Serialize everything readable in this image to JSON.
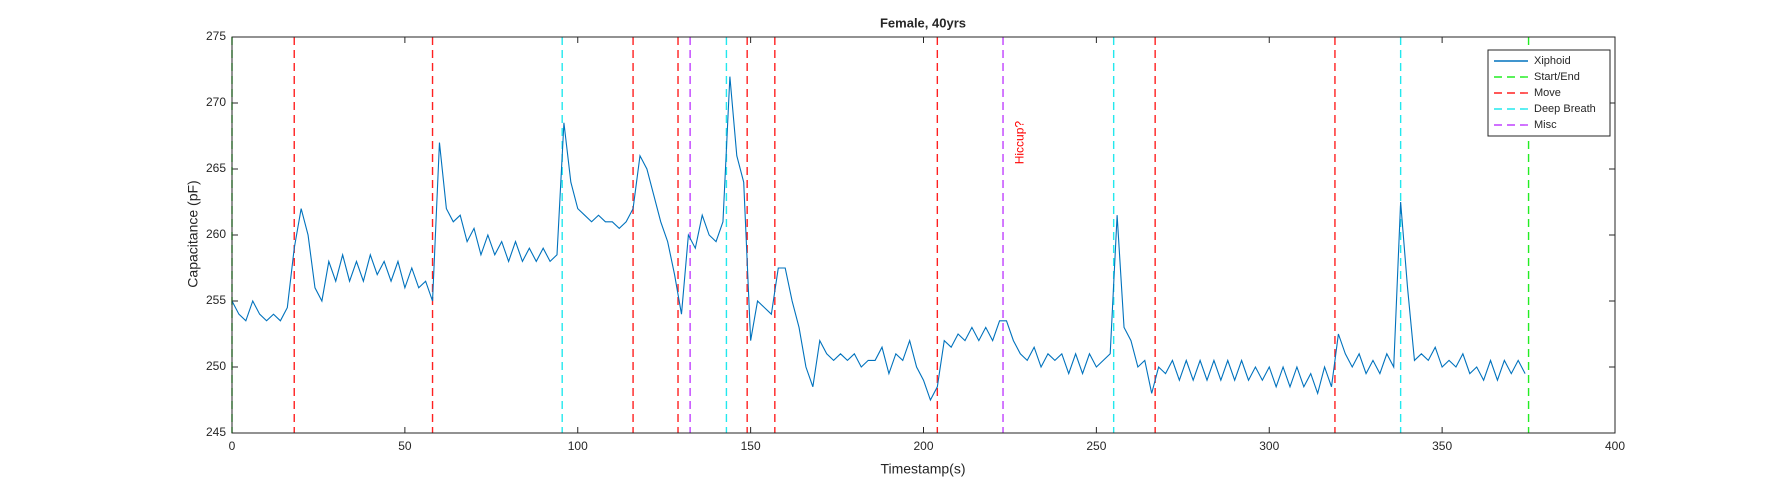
{
  "chart_data": {
    "type": "line",
    "title": "Female, 40yrs",
    "x_label": "Timestamp(s)",
    "y_label": "Capacitance (pF)",
    "xlim": [
      0,
      400
    ],
    "xticks": [
      0,
      50,
      100,
      150,
      200,
      250,
      300,
      350,
      400
    ],
    "ylim": [
      245,
      275
    ],
    "yticks": [
      245,
      250,
      255,
      260,
      265,
      270,
      275
    ],
    "legend": "upper right",
    "annotations": [
      {
        "text": "Hiccup?",
        "x": 228,
        "y": 267,
        "color": "#ff0000"
      }
    ],
    "series": [
      {
        "name": "Xiphoid",
        "color": "#0072bd",
        "style": "solid",
        "x": [
          0,
          2,
          4,
          6,
          8,
          10,
          12,
          14,
          16,
          18,
          20,
          22,
          24,
          26,
          28,
          30,
          32,
          34,
          36,
          38,
          40,
          42,
          44,
          46,
          48,
          50,
          52,
          54,
          56,
          58,
          60,
          62,
          64,
          66,
          68,
          70,
          72,
          74,
          76,
          78,
          80,
          82,
          84,
          86,
          88,
          90,
          92,
          94,
          96,
          98,
          100,
          102,
          104,
          106,
          108,
          110,
          112,
          114,
          116,
          118,
          120,
          122,
          124,
          126,
          128,
          130,
          132,
          134,
          136,
          138,
          140,
          142,
          144,
          146,
          148,
          150,
          152,
          154,
          156,
          158,
          160,
          162,
          164,
          166,
          168,
          170,
          172,
          174,
          176,
          178,
          180,
          182,
          184,
          186,
          188,
          190,
          192,
          194,
          196,
          198,
          200,
          202,
          204,
          206,
          208,
          210,
          212,
          214,
          216,
          218,
          220,
          222,
          224,
          226,
          228,
          230,
          232,
          234,
          236,
          238,
          240,
          242,
          244,
          246,
          248,
          250,
          252,
          254,
          256,
          258,
          260,
          262,
          264,
          266,
          268,
          270,
          272,
          274,
          276,
          278,
          280,
          282,
          284,
          286,
          288,
          290,
          292,
          294,
          296,
          298,
          300,
          302,
          304,
          306,
          308,
          310,
          312,
          314,
          316,
          318,
          320,
          322,
          324,
          326,
          328,
          330,
          332,
          334,
          336,
          338,
          340,
          342,
          344,
          346,
          348,
          350,
          352,
          354,
          356,
          358,
          360,
          362,
          364,
          366,
          368,
          370,
          372,
          374
        ],
        "values": [
          255,
          254,
          253.5,
          255,
          254,
          253.5,
          254,
          253.5,
          254.5,
          259,
          262,
          260,
          256,
          255,
          258,
          256.5,
          258.5,
          256.5,
          258,
          256.5,
          258.5,
          257,
          258,
          256.5,
          258,
          256,
          257.5,
          256,
          256.5,
          255,
          267,
          262,
          261,
          261.5,
          259.5,
          260.5,
          258.5,
          260,
          258.5,
          259.5,
          258,
          259.5,
          258,
          259,
          258,
          259,
          258,
          258.5,
          268.5,
          264,
          262,
          261.5,
          261,
          261.5,
          261,
          261,
          260.5,
          261,
          262,
          266,
          265,
          263,
          261,
          259.5,
          257,
          254,
          260,
          259,
          261.5,
          260,
          259.5,
          261,
          272,
          266,
          264,
          252,
          255,
          254.5,
          254,
          257.5,
          257.5,
          255,
          253,
          250,
          248.5,
          252,
          251,
          250.5,
          251,
          250.5,
          251,
          250,
          250.5,
          250.5,
          251.5,
          249.5,
          251,
          250.5,
          252,
          250,
          249,
          247.5,
          248.5,
          252,
          251.5,
          252.5,
          252,
          253,
          252,
          253,
          252,
          253.5,
          253.5,
          252,
          251,
          250.5,
          251.5,
          250,
          251,
          250.5,
          251,
          249.5,
          251,
          249.5,
          251,
          250,
          250.5,
          251,
          261.5,
          253,
          252,
          250,
          250.5,
          248,
          250,
          249.5,
          250.5,
          249,
          250.5,
          249,
          250.5,
          249,
          250.5,
          249,
          250.5,
          249,
          250.5,
          249,
          250,
          249,
          250,
          248.5,
          250,
          248.5,
          250,
          248.5,
          249.5,
          248,
          250,
          248.5,
          252.5,
          251,
          250,
          251,
          249.5,
          250.5,
          249.5,
          251,
          250,
          262.5,
          256,
          250.5,
          251,
          250.5,
          251.5,
          250,
          250.5,
          250,
          251,
          249.5,
          250,
          249,
          250.5,
          249,
          250.5,
          249.5,
          250.5,
          249.5
        ]
      },
      {
        "name": "Start/End",
        "color": "#22ee22",
        "style": "dashed",
        "x": [
          0,
          375
        ]
      },
      {
        "name": "Move",
        "color": "#ff2020",
        "style": "dashed",
        "x": [
          18,
          58,
          116,
          129,
          149,
          157,
          204,
          267,
          319
        ]
      },
      {
        "name": "Deep Breath",
        "color": "#22e8ee",
        "style": "dashed",
        "x": [
          95.5,
          143,
          255,
          338
        ]
      },
      {
        "name": "Misc",
        "color": "#c040ff",
        "style": "dashed",
        "x": [
          132.5,
          223
        ]
      }
    ]
  }
}
